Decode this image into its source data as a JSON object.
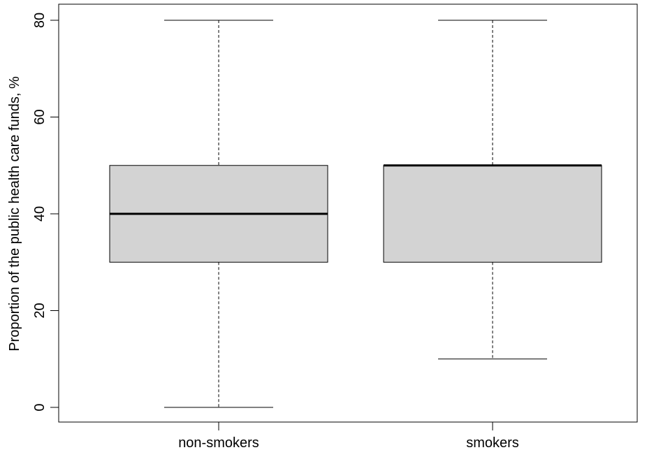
{
  "chart_data": {
    "type": "boxplot",
    "title": "",
    "xlabel": "",
    "ylabel": "Proportion of the public health care funds, %",
    "ylim": [
      0,
      80
    ],
    "yticks": [
      0,
      20,
      40,
      60,
      80
    ],
    "grid": false,
    "categories": [
      "non-smokers",
      "smokers"
    ],
    "boxes": [
      {
        "category": "non-smokers",
        "min": 0,
        "q1": 30,
        "median": 40,
        "q3": 50,
        "max": 80
      },
      {
        "category": "smokers",
        "min": 10,
        "q1": 30,
        "median": 50,
        "q3": 50,
        "max": 80
      }
    ],
    "colors": {
      "box_fill": "#d3d3d3",
      "line": "#000000"
    }
  }
}
